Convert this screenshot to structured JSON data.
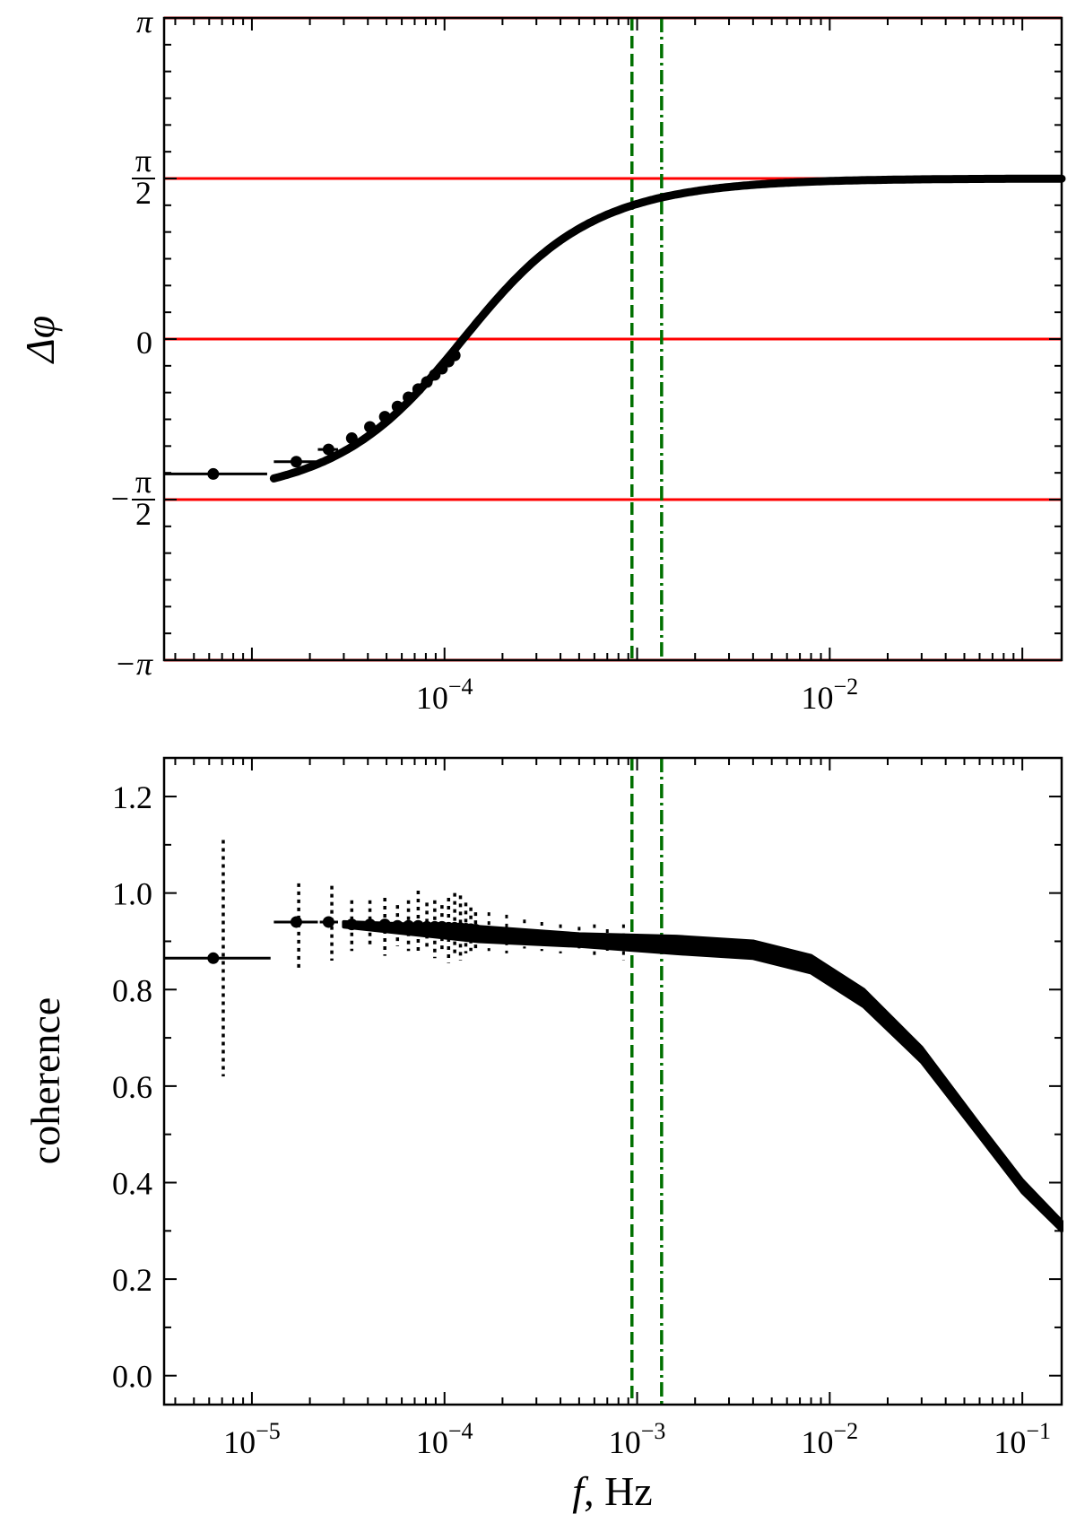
{
  "chart_data": [
    {
      "type": "scatter",
      "panel": "top",
      "xscale": "log",
      "xlim": [
        3.5e-06,
        0.16
      ],
      "ylim": [
        -3.14159,
        3.14159
      ],
      "xlabel": "",
      "ylabel": "Δφ",
      "x_ticks": [
        {
          "value": 0.0001,
          "base": "10",
          "exp": "−4"
        },
        {
          "value": 0.01,
          "base": "10",
          "exp": "−2"
        }
      ],
      "y_ticks": [
        {
          "value": 3.14159,
          "kind": "plain",
          "text": "π"
        },
        {
          "value": 1.5708,
          "kind": "frac",
          "sign": "",
          "num": "π",
          "den": "2"
        },
        {
          "value": 0,
          "kind": "plain",
          "text": "0"
        },
        {
          "value": -1.5708,
          "kind": "frac",
          "sign": "−",
          "num": "π",
          "den": "2"
        },
        {
          "value": -3.14159,
          "kind": "plain",
          "text": "−π"
        }
      ],
      "hlines": [
        3.14159,
        1.5708,
        0,
        -1.5708,
        -3.14159
      ],
      "hline_color": "#ff0000",
      "vlines": [
        {
          "x": 0.00094,
          "style": "dashed"
        },
        {
          "x": 0.00134,
          "style": "dashdot"
        }
      ],
      "vline_color": "#007000",
      "curve": {
        "model": "phase",
        "f0": 0.000125,
        "from": 1.3e-05,
        "to": 0.16
      },
      "points": [
        {
          "x": 6.3e-06,
          "y": -1.32,
          "xerr": [
            3.5e-06,
            1.2e-05
          ]
        },
        {
          "x": 1.7e-05,
          "y": -1.2,
          "xerr": [
            1.3e-05,
            2.15e-05
          ]
        },
        {
          "x": 2.5e-05,
          "y": -1.08,
          "xerr": [
            2.2e-05,
            2.8e-05
          ]
        },
        {
          "x": 3.3e-05,
          "y": -0.97
        },
        {
          "x": 4.1e-05,
          "y": -0.86
        },
        {
          "x": 4.9e-05,
          "y": -0.76
        },
        {
          "x": 5.7e-05,
          "y": -0.66
        },
        {
          "x": 6.5e-05,
          "y": -0.57
        },
        {
          "x": 7.3e-05,
          "y": -0.49
        },
        {
          "x": 8.1e-05,
          "y": -0.42
        },
        {
          "x": 8.9e-05,
          "y": -0.35
        },
        {
          "x": 9.7e-05,
          "y": -0.29
        },
        {
          "x": 0.000105,
          "y": -0.22
        },
        {
          "x": 0.000113,
          "y": -0.16
        }
      ],
      "point_color": "#000000"
    },
    {
      "type": "scatter",
      "panel": "bottom",
      "xscale": "log",
      "xlim": [
        3.5e-06,
        0.16
      ],
      "ylim": [
        -0.06,
        1.28
      ],
      "xlabel": "f, Hz",
      "ylabel": "coherence",
      "x_ticks": [
        {
          "value": 1e-05,
          "base": "10",
          "exp": "−5"
        },
        {
          "value": 0.0001,
          "base": "10",
          "exp": "−4"
        },
        {
          "value": 0.001,
          "base": "10",
          "exp": "−3"
        },
        {
          "value": 0.01,
          "base": "10",
          "exp": "−2"
        },
        {
          "value": 0.1,
          "base": "10",
          "exp": "−1"
        }
      ],
      "y_ticks": [
        {
          "value": 0.0,
          "text": "0.0"
        },
        {
          "value": 0.2,
          "text": "0.2"
        },
        {
          "value": 0.4,
          "text": "0.4"
        },
        {
          "value": 0.6,
          "text": "0.6"
        },
        {
          "value": 0.8,
          "text": "0.8"
        },
        {
          "value": 1.0,
          "text": "1.0"
        },
        {
          "value": 1.2,
          "text": "1.2"
        }
      ],
      "vlines": [
        {
          "x": 0.00094,
          "style": "dashed"
        },
        {
          "x": 0.00134,
          "style": "dashdot"
        }
      ],
      "vline_color": "#007000",
      "band": [
        {
          "x": 3e-05,
          "upper": 0.94,
          "lower": 0.93
        },
        {
          "x": 0.00015,
          "upper": 0.93,
          "lower": 0.9
        },
        {
          "x": 0.0005,
          "upper": 0.915,
          "lower": 0.89
        },
        {
          "x": 0.0016,
          "upper": 0.91,
          "lower": 0.875
        },
        {
          "x": 0.004,
          "upper": 0.9,
          "lower": 0.865
        },
        {
          "x": 0.008,
          "upper": 0.87,
          "lower": 0.835
        },
        {
          "x": 0.015,
          "upper": 0.8,
          "lower": 0.765
        },
        {
          "x": 0.03,
          "upper": 0.68,
          "lower": 0.65
        },
        {
          "x": 0.06,
          "upper": 0.52,
          "lower": 0.495
        },
        {
          "x": 0.1,
          "upper": 0.405,
          "lower": 0.38
        },
        {
          "x": 0.16,
          "upper": 0.32,
          "lower": 0.3
        }
      ],
      "points": [
        {
          "x": 6.3e-06,
          "y": 0.865,
          "xerr": [
            3.5e-06,
            1.25e-05
          ],
          "yerr": [
            0.62,
            1.11
          ],
          "yerr_x": 7.1e-06
        },
        {
          "x": 1.7e-05,
          "y": 0.94,
          "xerr": [
            1.3e-05,
            2.2e-05
          ],
          "yerr": [
            0.84,
            1.02
          ],
          "yerr_x": 1.75e-05
        },
        {
          "x": 2.5e-05,
          "y": 0.94,
          "xerr": [
            2.25e-05,
            2.8e-05
          ],
          "yerr": [
            0.86,
            1.015
          ],
          "yerr_x": 2.6e-05
        },
        {
          "x": 3.3e-05,
          "y": 0.935,
          "yerr": [
            0.88,
            0.985
          ]
        },
        {
          "x": 4.1e-05,
          "y": 0.935,
          "yerr": [
            0.885,
            0.985
          ]
        },
        {
          "x": 4.9e-05,
          "y": 0.935,
          "yerr": [
            0.87,
            0.99
          ]
        },
        {
          "x": 5.7e-05,
          "y": 0.932,
          "yerr": [
            0.89,
            0.975
          ]
        },
        {
          "x": 6.5e-05,
          "y": 0.932,
          "yerr": [
            0.88,
            0.985
          ]
        },
        {
          "x": 7.3e-05,
          "y": 0.932,
          "yerr": [
            0.875,
            1.005
          ]
        },
        {
          "x": 8.1e-05,
          "y": 0.93,
          "yerr": [
            0.88,
            0.98
          ]
        },
        {
          "x": 8.9e-05,
          "y": 0.93,
          "yerr": [
            0.865,
            0.985
          ]
        },
        {
          "x": 9.7e-05,
          "y": 0.93,
          "yerr": [
            0.88,
            0.975
          ]
        },
        {
          "x": 0.000105,
          "y": 0.928,
          "yerr": [
            0.855,
            0.99
          ]
        },
        {
          "x": 0.000113,
          "y": 0.928,
          "yerr": [
            0.87,
            1.0
          ]
        },
        {
          "x": 0.000121,
          "y": 0.927,
          "yerr": [
            0.86,
            0.995
          ]
        },
        {
          "x": 0.000129,
          "y": 0.926,
          "yerr": [
            0.875,
            0.98
          ]
        },
        {
          "x": 0.000137,
          "y": 0.925,
          "yerr": [
            0.88,
            0.97
          ]
        },
        {
          "x": 0.000145,
          "y": 0.924,
          "yerr": [
            0.885,
            0.96
          ]
        }
      ],
      "scatter_ticks": [
        {
          "x": 0.00017,
          "lo": 0.88,
          "hi": 0.96
        },
        {
          "x": 0.00021,
          "lo": 0.875,
          "hi": 0.955
        },
        {
          "x": 0.00026,
          "lo": 0.885,
          "hi": 0.945
        },
        {
          "x": 0.00032,
          "lo": 0.88,
          "hi": 0.94
        },
        {
          "x": 0.0004,
          "lo": 0.875,
          "hi": 0.935
        },
        {
          "x": 0.0005,
          "lo": 0.88,
          "hi": 0.93
        },
        {
          "x": 0.0006,
          "lo": 0.87,
          "hi": 0.935
        },
        {
          "x": 0.0007,
          "lo": 0.88,
          "hi": 0.925
        },
        {
          "x": 0.00085,
          "lo": 0.86,
          "hi": 0.935
        }
      ],
      "point_color": "#000000"
    }
  ]
}
